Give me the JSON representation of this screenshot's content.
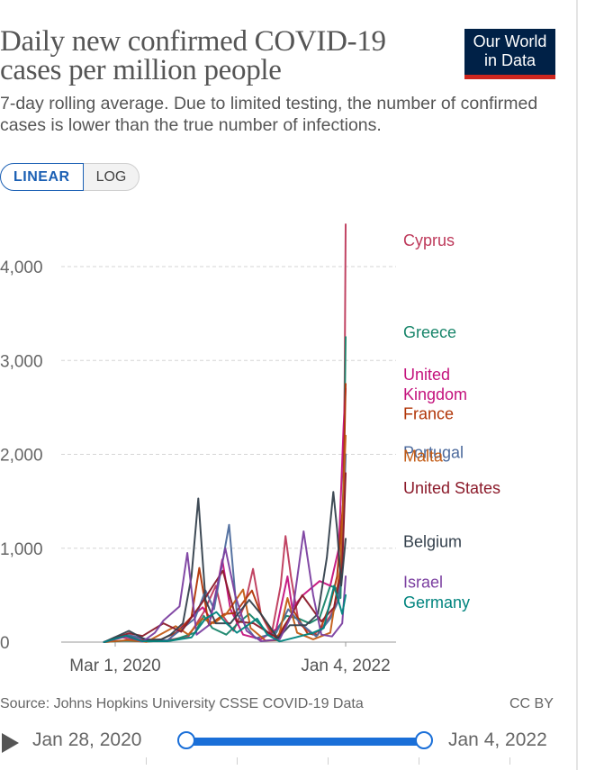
{
  "header": {
    "title": "Daily new confirmed COVID-19 cases per million people",
    "subtitle": "7-day rolling average. Due to limited testing, the number of confirmed cases is lower than the true number of infections.",
    "logo_line1": "Our World",
    "logo_line2": "in Data"
  },
  "scale_toggle": {
    "linear_label": "LINEAR",
    "log_label": "LOG",
    "selected": "LINEAR"
  },
  "footer": {
    "source": "Source: Johns Hopkins University CSSE COVID-19 Data",
    "license": "CC BY"
  },
  "timeline": {
    "start_label": "Jan 28, 2020",
    "end_label": "Jan 4, 2022"
  },
  "chart_data": {
    "type": "line",
    "title": "Daily new confirmed COVID-19 cases per million people",
    "subtitle": "7-day rolling average. Due to limited testing, the number of confirmed cases is lower than the true number of infections.",
    "xlabel": "",
    "ylabel": "",
    "x_start": "Jan 28, 2020",
    "x_end": "Jan 4, 2022",
    "x_tick_labels": [
      "Mar 1, 2020",
      "Jan 4, 2022"
    ],
    "x_tick_dates": [
      "2020-03-01",
      "2022-01-04"
    ],
    "y_ticks": [
      0,
      1000,
      2000,
      3000,
      4000
    ],
    "y_tick_labels": [
      "0",
      "1,000",
      "2,000",
      "3,000",
      "4,000"
    ],
    "ylim": [
      0,
      4450
    ],
    "grid": "horizontal dashed",
    "legend": "inline labels at right end",
    "series": [
      {
        "name": "Cyprus",
        "color": "#be3a5b",
        "label_y": 4280,
        "points": [
          [
            "2020-01-28",
            0
          ],
          [
            "2020-03-15",
            60
          ],
          [
            "2020-04-10",
            30
          ],
          [
            "2020-06-01",
            5
          ],
          [
            "2020-08-01",
            20
          ],
          [
            "2020-10-01",
            60
          ],
          [
            "2020-11-15",
            320
          ],
          [
            "2020-12-20",
            600
          ],
          [
            "2021-01-10",
            280
          ],
          [
            "2021-02-10",
            120
          ],
          [
            "2021-03-15",
            400
          ],
          [
            "2021-04-08",
            780
          ],
          [
            "2021-05-01",
            300
          ],
          [
            "2021-06-01",
            80
          ],
          [
            "2021-06-28",
            600
          ],
          [
            "2021-07-12",
            1130
          ],
          [
            "2021-07-28",
            700
          ],
          [
            "2021-08-20",
            200
          ],
          [
            "2021-09-30",
            80
          ],
          [
            "2021-10-25",
            140
          ],
          [
            "2021-11-20",
            280
          ],
          [
            "2021-12-10",
            420
          ],
          [
            "2021-12-20",
            600
          ],
          [
            "2021-12-27",
            1300
          ],
          [
            "2022-01-01",
            2800
          ],
          [
            "2022-01-04",
            4450
          ]
        ]
      },
      {
        "name": "Greece",
        "color": "#18856a",
        "label_y": 3300,
        "points": [
          [
            "2020-01-28",
            0
          ],
          [
            "2020-04-01",
            15
          ],
          [
            "2020-06-01",
            5
          ],
          [
            "2020-08-20",
            25
          ],
          [
            "2020-10-20",
            100
          ],
          [
            "2020-11-15",
            280
          ],
          [
            "2020-12-10",
            150
          ],
          [
            "2021-01-20",
            80
          ],
          [
            "2021-03-01",
            220
          ],
          [
            "2021-03-28",
            300
          ],
          [
            "2021-04-25",
            200
          ],
          [
            "2021-06-01",
            60
          ],
          [
            "2021-07-15",
            280
          ],
          [
            "2021-08-20",
            250
          ],
          [
            "2021-09-20",
            200
          ],
          [
            "2021-10-20",
            260
          ],
          [
            "2021-11-20",
            600
          ],
          [
            "2021-12-05",
            580
          ],
          [
            "2021-12-20",
            470
          ],
          [
            "2021-12-30",
            1900
          ],
          [
            "2022-01-04",
            3250
          ]
        ]
      },
      {
        "name": "United Kingdom",
        "color": "#c4137d",
        "label_y": 2850,
        "points": [
          [
            "2020-01-28",
            0
          ],
          [
            "2020-04-12",
            70
          ],
          [
            "2020-06-01",
            20
          ],
          [
            "2020-08-01",
            12
          ],
          [
            "2020-10-20",
            300
          ],
          [
            "2020-11-12",
            370
          ],
          [
            "2020-12-05",
            250
          ],
          [
            "2020-12-25",
            600
          ],
          [
            "2021-01-08",
            880
          ],
          [
            "2021-02-01",
            350
          ],
          [
            "2021-03-10",
            80
          ],
          [
            "2021-05-01",
            30
          ],
          [
            "2021-06-15",
            140
          ],
          [
            "2021-07-18",
            700
          ],
          [
            "2021-08-01",
            360
          ],
          [
            "2021-09-01",
            500
          ],
          [
            "2021-10-20",
            650
          ],
          [
            "2021-11-20",
            600
          ],
          [
            "2021-12-15",
            1000
          ],
          [
            "2021-12-29",
            2300
          ],
          [
            "2022-01-04",
            2700
          ]
        ]
      },
      {
        "name": "France",
        "color": "#b13507",
        "label_y": 2430,
        "points": [
          [
            "2020-01-28",
            0
          ],
          [
            "2020-03-28",
            70
          ],
          [
            "2020-05-01",
            20
          ],
          [
            "2020-07-01",
            10
          ],
          [
            "2020-09-01",
            110
          ],
          [
            "2020-10-10",
            270
          ],
          [
            "2020-11-02",
            790
          ],
          [
            "2020-11-30",
            180
          ],
          [
            "2021-01-15",
            300
          ],
          [
            "2021-02-15",
            310
          ],
          [
            "2021-04-05",
            550
          ],
          [
            "2021-05-01",
            300
          ],
          [
            "2021-06-15",
            40
          ],
          [
            "2021-08-05",
            330
          ],
          [
            "2021-09-15",
            90
          ],
          [
            "2021-10-15",
            80
          ],
          [
            "2021-11-20",
            400
          ],
          [
            "2021-12-10",
            700
          ],
          [
            "2021-12-28",
            1500
          ],
          [
            "2022-01-04",
            2750
          ]
        ]
      },
      {
        "name": "Portugal",
        "color": "#4c6a9c",
        "label_y": 2020,
        "points": [
          [
            "2020-01-28",
            0
          ],
          [
            "2020-04-05",
            80
          ],
          [
            "2020-06-01",
            30
          ],
          [
            "2020-08-01",
            20
          ],
          [
            "2020-10-20",
            250
          ],
          [
            "2020-11-20",
            550
          ],
          [
            "2020-12-15",
            350
          ],
          [
            "2021-01-28",
            1250
          ],
          [
            "2021-02-20",
            300
          ],
          [
            "2021-04-15",
            40
          ],
          [
            "2021-06-15",
            100
          ],
          [
            "2021-07-20",
            350
          ],
          [
            "2021-08-25",
            200
          ],
          [
            "2021-10-10",
            60
          ],
          [
            "2021-11-20",
            250
          ],
          [
            "2021-12-15",
            450
          ],
          [
            "2021-12-29",
            1300
          ],
          [
            "2022-01-04",
            2000
          ]
        ]
      },
      {
        "name": "Malta",
        "color": "#c35c15",
        "label_y": 1980,
        "points": [
          [
            "2020-01-28",
            0
          ],
          [
            "2020-04-05",
            20
          ],
          [
            "2020-06-01",
            2
          ],
          [
            "2020-08-25",
            170
          ],
          [
            "2020-10-01",
            80
          ],
          [
            "2020-11-10",
            250
          ],
          [
            "2020-12-15",
            200
          ],
          [
            "2021-01-20",
            300
          ],
          [
            "2021-03-10",
            560
          ],
          [
            "2021-04-01",
            150
          ],
          [
            "2021-05-15",
            15
          ],
          [
            "2021-06-20",
            20
          ],
          [
            "2021-07-18",
            470
          ],
          [
            "2021-08-15",
            100
          ],
          [
            "2021-10-01",
            30
          ],
          [
            "2021-11-20",
            100
          ],
          [
            "2021-12-20",
            800
          ],
          [
            "2022-01-04",
            2200
          ]
        ]
      },
      {
        "name": "United States",
        "color": "#8b1a2a",
        "label_y": 1640,
        "points": [
          [
            "2020-01-28",
            0
          ],
          [
            "2020-04-10",
            95
          ],
          [
            "2020-05-20",
            65
          ],
          [
            "2020-07-20",
            200
          ],
          [
            "2020-09-10",
            110
          ],
          [
            "2020-11-10",
            420
          ],
          [
            "2021-01-10",
            760
          ],
          [
            "2021-02-20",
            220
          ],
          [
            "2021-04-10",
            200
          ],
          [
            "2021-06-20",
            38
          ],
          [
            "2021-08-30",
            500
          ],
          [
            "2021-10-25",
            220
          ],
          [
            "2021-12-01",
            370
          ],
          [
            "2021-12-25",
            800
          ],
          [
            "2022-01-04",
            1800
          ]
        ]
      },
      {
        "name": "Belgium",
        "color": "#35414d",
        "label_y": 1070,
        "points": [
          [
            "2020-01-28",
            0
          ],
          [
            "2020-04-10",
            120
          ],
          [
            "2020-06-01",
            20
          ],
          [
            "2020-07-15",
            30
          ],
          [
            "2020-08-10",
            80
          ],
          [
            "2020-09-15",
            200
          ],
          [
            "2020-10-10",
            700
          ],
          [
            "2020-10-30",
            1530
          ],
          [
            "2020-11-20",
            450
          ],
          [
            "2020-12-20",
            200
          ],
          [
            "2021-02-01",
            200
          ],
          [
            "2021-03-28",
            450
          ],
          [
            "2021-05-01",
            300
          ],
          [
            "2021-06-20",
            40
          ],
          [
            "2021-07-25",
            180
          ],
          [
            "2021-09-10",
            180
          ],
          [
            "2021-10-15",
            300
          ],
          [
            "2021-11-10",
            900
          ],
          [
            "2021-11-29",
            1600
          ],
          [
            "2021-12-10",
            1200
          ],
          [
            "2021-12-22",
            600
          ],
          [
            "2022-01-04",
            1100
          ]
        ]
      },
      {
        "name": "Israel",
        "color": "#7b3fa0",
        "label_y": 640,
        "points": [
          [
            "2020-01-28",
            0
          ],
          [
            "2020-04-01",
            60
          ],
          [
            "2020-05-20",
            5
          ],
          [
            "2020-06-25",
            100
          ],
          [
            "2020-07-20",
            230
          ],
          [
            "2020-09-05",
            380
          ],
          [
            "2020-09-28",
            950
          ],
          [
            "2020-10-25",
            80
          ],
          [
            "2020-11-30",
            180
          ],
          [
            "2021-01-17",
            1000
          ],
          [
            "2021-02-15",
            500
          ],
          [
            "2021-03-20",
            120
          ],
          [
            "2021-05-01",
            10
          ],
          [
            "2021-06-25",
            30
          ],
          [
            "2021-08-01",
            300
          ],
          [
            "2021-09-03",
            1180
          ],
          [
            "2021-10-01",
            500
          ],
          [
            "2021-10-25",
            80
          ],
          [
            "2021-11-25",
            60
          ],
          [
            "2021-12-25",
            200
          ],
          [
            "2022-01-04",
            700
          ]
        ]
      },
      {
        "name": "Germany",
        "color": "#00847e",
        "label_y": 420,
        "points": [
          [
            "2020-01-28",
            0
          ],
          [
            "2020-04-01",
            70
          ],
          [
            "2020-05-20",
            10
          ],
          [
            "2020-08-01",
            10
          ],
          [
            "2020-10-10",
            50
          ],
          [
            "2020-11-20",
            250
          ],
          [
            "2020-12-22",
            320
          ],
          [
            "2021-01-20",
            200
          ],
          [
            "2021-02-20",
            100
          ],
          [
            "2021-04-20",
            250
          ],
          [
            "2021-05-20",
            80
          ],
          [
            "2021-06-25",
            8
          ],
          [
            "2021-08-10",
            50
          ],
          [
            "2021-10-01",
            100
          ],
          [
            "2021-11-01",
            150
          ],
          [
            "2021-12-01",
            600
          ],
          [
            "2021-12-25",
            300
          ],
          [
            "2022-01-04",
            500
          ]
        ]
      }
    ]
  }
}
